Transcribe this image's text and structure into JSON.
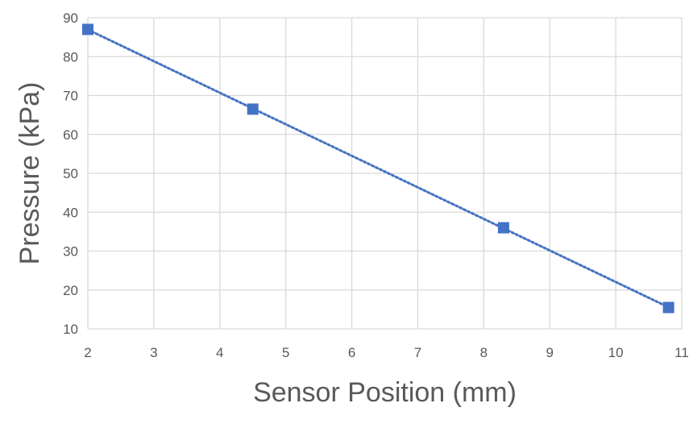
{
  "chart_data": {
    "type": "scatter",
    "title": "",
    "xlabel": "Sensor Position (mm)",
    "ylabel": "Pressure (kPa)",
    "xlim": [
      2,
      11
    ],
    "ylim": [
      10,
      90
    ],
    "x_ticks": [
      "2",
      "3",
      "4",
      "5",
      "6",
      "7",
      "8",
      "9",
      "10",
      "11"
    ],
    "y_ticks": [
      "10",
      "20",
      "30",
      "40",
      "50",
      "60",
      "70",
      "80",
      "90"
    ],
    "grid": true,
    "legend": "none",
    "series": [
      {
        "marker": "square",
        "color": "#4472C4",
        "points": [
          {
            "x": 2.0,
            "y": 87.0
          },
          {
            "x": 4.5,
            "y": 66.5
          },
          {
            "x": 8.3,
            "y": 36.0
          },
          {
            "x": 10.8,
            "y": 15.5
          }
        ],
        "trendline": {
          "type": "linear",
          "style": "dotted",
          "color": "#4472C4"
        }
      }
    ]
  }
}
